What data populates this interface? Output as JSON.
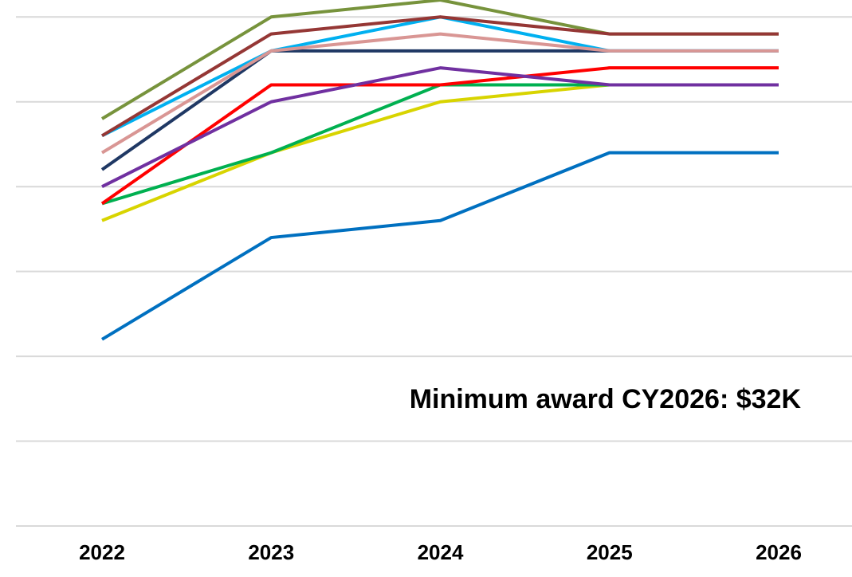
{
  "chart_data": {
    "type": "line",
    "x": [
      2022,
      2023,
      2024,
      2025,
      2026
    ],
    "series": [
      {
        "color": "#0070c0",
        "values": [
          21,
          27,
          28,
          32,
          32
        ]
      },
      {
        "color": "#d8d400",
        "values": [
          28,
          32,
          35,
          36,
          36
        ]
      },
      {
        "color": "#00b050",
        "values": [
          29,
          32,
          36,
          36,
          36
        ]
      },
      {
        "color": "#ff0000",
        "values": [
          29,
          36,
          36,
          37,
          37
        ]
      },
      {
        "color": "#7030a0",
        "values": [
          30,
          35,
          37,
          36,
          36
        ]
      },
      {
        "color": "#1f3864",
        "values": [
          31,
          38,
          38,
          38,
          38
        ]
      },
      {
        "color": "#00b0f0",
        "values": [
          33,
          38,
          40,
          38,
          38
        ]
      },
      {
        "color": "#d99694",
        "values": [
          32,
          38,
          39,
          38,
          38
        ]
      },
      {
        "color": "#77933c",
        "values": [
          34,
          40,
          41,
          39,
          39
        ]
      },
      {
        "color": "#953735",
        "values": [
          33,
          39,
          40,
          39,
          39
        ]
      }
    ],
    "ylim": [
      10,
      41
    ],
    "yticks": [
      10,
      15,
      20,
      25,
      30,
      35,
      40
    ],
    "grid": true,
    "annotation": "Minimum award CY2026: $32K"
  }
}
